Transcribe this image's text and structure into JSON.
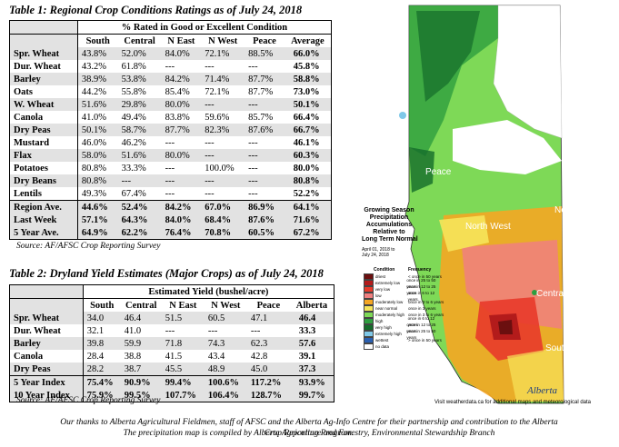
{
  "table1": {
    "title": "Table 1: Regional Crop Conditions Ratings as of July 24, 2018",
    "group_header": "% Rated in Good or Excellent Condition",
    "columns": [
      "South",
      "Central",
      "N East",
      "N West",
      "Peace",
      "Average"
    ],
    "rows": [
      {
        "label": "Spr. Wheat",
        "values": [
          "43.8%",
          "52.0%",
          "84.0%",
          "72.1%",
          "88.5%",
          "66.0%"
        ]
      },
      {
        "label": "Dur. Wheat",
        "values": [
          "43.2%",
          "61.8%",
          "---",
          "---",
          "---",
          "45.8%"
        ]
      },
      {
        "label": "Barley",
        "values": [
          "38.9%",
          "53.8%",
          "84.2%",
          "71.4%",
          "87.7%",
          "58.8%"
        ]
      },
      {
        "label": "Oats",
        "values": [
          "44.2%",
          "55.8%",
          "85.4%",
          "72.1%",
          "87.7%",
          "73.0%"
        ]
      },
      {
        "label": "W. Wheat",
        "values": [
          "51.6%",
          "29.8%",
          "80.0%",
          "---",
          "---",
          "50.1%"
        ]
      },
      {
        "label": "Canola",
        "values": [
          "41.0%",
          "49.4%",
          "83.8%",
          "59.6%",
          "85.7%",
          "66.4%"
        ]
      },
      {
        "label": "Dry Peas",
        "values": [
          "50.1%",
          "58.7%",
          "87.7%",
          "82.3%",
          "87.6%",
          "66.7%"
        ]
      },
      {
        "label": "Mustard",
        "values": [
          "46.0%",
          "46.2%",
          "---",
          "---",
          "---",
          "46.1%"
        ]
      },
      {
        "label": "Flax",
        "values": [
          "58.0%",
          "51.6%",
          "80.0%",
          "---",
          "---",
          "60.3%"
        ]
      },
      {
        "label": "Potatoes",
        "values": [
          "80.8%",
          "33.3%",
          "---",
          "100.0%",
          "---",
          "80.0%"
        ]
      },
      {
        "label": "Dry Beans",
        "values": [
          "80.8%",
          "---",
          "---",
          "---",
          "---",
          "80.8%"
        ]
      },
      {
        "label": "Lentils",
        "values": [
          "49.3%",
          "67.4%",
          "---",
          "---",
          "---",
          "52.2%"
        ]
      }
    ],
    "summary": [
      {
        "label": "Region Ave.",
        "values": [
          "44.6%",
          "52.4%",
          "84.2%",
          "67.0%",
          "86.9%",
          "64.1%"
        ]
      },
      {
        "label": "Last Week",
        "values": [
          "57.1%",
          "64.3%",
          "84.0%",
          "68.4%",
          "87.6%",
          "71.6%"
        ]
      },
      {
        "label": "5 Year Ave.",
        "values": [
          "64.9%",
          "62.2%",
          "76.4%",
          "70.8%",
          "60.5%",
          "67.2%"
        ]
      }
    ],
    "source": "Source: AF/AFSC Crop Reporting Survey"
  },
  "table2": {
    "title": "Table 2: Dryland Yield Estimates (Major Crops) as of July 24, 2018",
    "group_header": "Estimated Yield (bushel/acre)",
    "columns": [
      "South",
      "Central",
      "N East",
      "N West",
      "Peace",
      "Alberta"
    ],
    "rows": [
      {
        "label": "Spr. Wheat",
        "values": [
          "34.0",
          "46.4",
          "51.5",
          "60.5",
          "47.1",
          "46.4"
        ]
      },
      {
        "label": "Dur. Wheat",
        "values": [
          "32.1",
          "41.0",
          "---",
          "---",
          "---",
          "33.3"
        ]
      },
      {
        "label": "Barley",
        "values": [
          "39.8",
          "59.9",
          "71.8",
          "74.3",
          "62.3",
          "57.6"
        ]
      },
      {
        "label": "Canola",
        "values": [
          "28.4",
          "38.8",
          "41.5",
          "43.4",
          "42.8",
          "39.1"
        ]
      },
      {
        "label": "Dry Peas",
        "values": [
          "28.2",
          "38.7",
          "45.5",
          "48.9",
          "45.0",
          "37.3"
        ]
      }
    ],
    "summary": [
      {
        "label": "5 Year  Index",
        "values": [
          "75.4%",
          "90.9%",
          "99.4%",
          "100.6%",
          "117.2%",
          "93.9%"
        ]
      },
      {
        "label": "10 Year Index",
        "values": [
          "75.9%",
          "99.5%",
          "107.7%",
          "106.4%",
          "128.7%",
          "99.7%"
        ]
      }
    ],
    "source": "Source: AF/AFSC Crop Reporting Survey"
  },
  "map": {
    "regions": [
      "Peace",
      "North East",
      "North West",
      "Central",
      "South"
    ],
    "legend_title_lines": [
      "Growing Season",
      "Precipitation",
      "Accumulations",
      "Relative to",
      "Long Term Normal"
    ],
    "date_lines": [
      "April 01, 2018 to",
      "July 24, 2018"
    ],
    "legend_header_condition": "Condition",
    "legend_header_frequency": "Frequency",
    "legend": [
      {
        "condition": "driest",
        "frequency": "< once in 50 years",
        "color": "#6b0f0f"
      },
      {
        "condition": "extremely low",
        "frequency": "once in 25 to 50 years",
        "color": "#b31b1b"
      },
      {
        "condition": "very low",
        "frequency": "once in 12 to 25 years",
        "color": "#e83a2a"
      },
      {
        "condition": "low",
        "frequency": "once in 6 to 12 years",
        "color": "#f07f7f"
      },
      {
        "condition": "moderately low",
        "frequency": "once in 3 to 6 years",
        "color": "#f5a623"
      },
      {
        "condition": "near normal",
        "frequency": "once in 3 years",
        "color": "#f6e45a"
      },
      {
        "condition": "moderately high",
        "frequency": "once in 3 to 6 years",
        "color": "#7ed957"
      },
      {
        "condition": "high",
        "frequency": "once in 6 to 12 years",
        "color": "#2e9e3f"
      },
      {
        "condition": "very high",
        "frequency": "once in 12 to 25 years",
        "color": "#146b2a"
      },
      {
        "condition": "extremely high",
        "frequency": "once in 25 to 50 years",
        "color": "#7fc8e8"
      },
      {
        "condition": "wettest",
        "frequency": "> once in 50 years",
        "color": "#2a5fb0"
      },
      {
        "condition": "no data",
        "frequency": "",
        "color": "#ffffff"
      }
    ],
    "footer": "Visit weatherdata.ca for additional maps and meteorological data",
    "logo_text": "Alberta"
  },
  "footnote_lines": [
    "Our thanks to Alberta Agricultural Fieldmen, staff of AFSC and the Alberta Ag-Info Centre for their partnership and contribution to the Alberta Crop Reporting Program.",
    "The precipitation map is compiled by Alberta Agriculture and Forestry, Environmental Stewardship Branch"
  ]
}
